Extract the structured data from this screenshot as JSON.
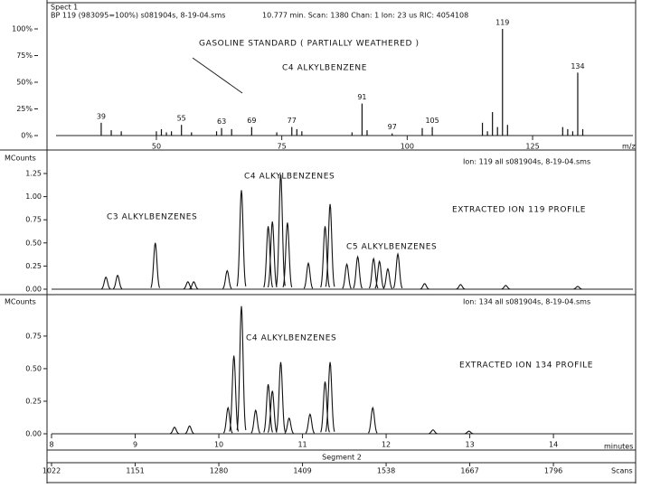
{
  "chart_data": [
    {
      "type": "spectrum",
      "title": "Spect 1",
      "subtitle": "BP 119 (983095=100%) s081904s, 8-19-04.sms",
      "scan_info": "10.777 min. Scan: 1380 Chan: 1 Ion: 23 us RIC: 4054108",
      "annotations": [
        "GASOLINE STANDARD ( PARTIALLY WEATHERED )",
        "C4 ALKYLBENZENE"
      ],
      "x_label": "m/z",
      "xlim": [
        30,
        145
      ],
      "xticks": [
        50,
        75,
        100,
        125
      ],
      "ylim": [
        0,
        100
      ],
      "yticks": [
        {
          "value": 0,
          "label": "0%"
        },
        {
          "value": 25,
          "label": "25%"
        },
        {
          "value": 50,
          "label": "50%"
        },
        {
          "value": 75,
          "label": "75%"
        },
        {
          "value": 100,
          "label": "100%"
        }
      ],
      "labeled_peaks": {
        "x": [
          39,
          55,
          63,
          69,
          77,
          91,
          97,
          105,
          119,
          134
        ],
        "values": [
          12,
          10,
          7,
          8,
          8,
          30,
          2,
          8,
          100,
          59
        ]
      },
      "other_peaks": {
        "x": [
          41,
          43,
          50,
          51,
          52,
          53,
          57,
          62,
          65,
          74,
          78,
          79,
          89,
          92,
          103,
          115,
          116,
          117,
          118,
          120,
          131,
          132,
          133,
          135
        ],
        "values": [
          5,
          4,
          4,
          6,
          3,
          4,
          3,
          4,
          6,
          3,
          6,
          4,
          3,
          5,
          7,
          12,
          4,
          22,
          8,
          10,
          8,
          6,
          4,
          6
        ]
      }
    },
    {
      "type": "chromatogram",
      "header": "Ion: 119 all s081904s, 8-19-04.sms",
      "y_label": "MCounts",
      "annotations": [
        "C4 ALKYLBENZENES",
        "C3 ALKYLBENZENES",
        "C5 ALKYLBENZENES",
        "EXTRACTED ION 119 PROFILE"
      ],
      "xlim": [
        8,
        14.95
      ],
      "ylim": [
        0,
        1.25
      ],
      "yticks": [
        {
          "value": 0,
          "label": "0.00"
        },
        {
          "value": 0.25,
          "label": "0.25"
        },
        {
          "value": 0.5,
          "label": "0.50"
        },
        {
          "value": 0.75,
          "label": "0.75"
        },
        {
          "value": 1,
          "label": "1.00"
        },
        {
          "value": 1.25,
          "label": "1.25"
        }
      ],
      "peaks": {
        "x": [
          8.65,
          8.79,
          9.24,
          9.63,
          9.7,
          10.1,
          10.27,
          10.59,
          10.64,
          10.74,
          10.82,
          11.07,
          11.27,
          11.33,
          11.53,
          11.66,
          11.85,
          11.92,
          12.02,
          12.14,
          12.46,
          12.89,
          13.43,
          14.29
        ],
        "values": [
          0.13,
          0.15,
          0.5,
          0.08,
          0.08,
          0.2,
          1.07,
          0.68,
          0.73,
          1.24,
          0.72,
          0.28,
          0.68,
          0.92,
          0.27,
          0.35,
          0.33,
          0.3,
          0.22,
          0.38,
          0.06,
          0.05,
          0.04,
          0.03
        ]
      }
    },
    {
      "type": "chromatogram",
      "header": "Ion: 134 all s081904s, 8-19-04.sms",
      "y_label": "MCounts",
      "annotations": [
        "C4 ALKYLBENZENES",
        "EXTRACTED ION 134 PROFILE"
      ],
      "xlim": [
        8,
        14.95
      ],
      "xticks": [
        8,
        9,
        10,
        11,
        12,
        13,
        14
      ],
      "x_label": "minutes",
      "segment": "Segment 2",
      "x2lim": [
        1022,
        1918.6
      ],
      "x2ticks": [
        1022,
        1151,
        1280,
        1409,
        1538,
        1667,
        1796
      ],
      "x2_label": "Scans",
      "ylim": [
        0,
        1.02
      ],
      "yticks": [
        {
          "value": 0,
          "label": "0.00"
        },
        {
          "value": 0.25,
          "label": "0.25"
        },
        {
          "value": 0.5,
          "label": "0.50"
        },
        {
          "value": 0.75,
          "label": "0.75"
        }
      ],
      "peaks": {
        "x": [
          9.47,
          9.65,
          10.11,
          10.18,
          10.27,
          10.44,
          10.59,
          10.64,
          10.74,
          10.84,
          11.09,
          11.27,
          11.33,
          11.84,
          12.56,
          12.99
        ],
        "values": [
          0.05,
          0.06,
          0.2,
          0.6,
          0.98,
          0.18,
          0.38,
          0.33,
          0.55,
          0.12,
          0.15,
          0.4,
          0.55,
          0.2,
          0.03,
          0.02
        ]
      }
    }
  ]
}
